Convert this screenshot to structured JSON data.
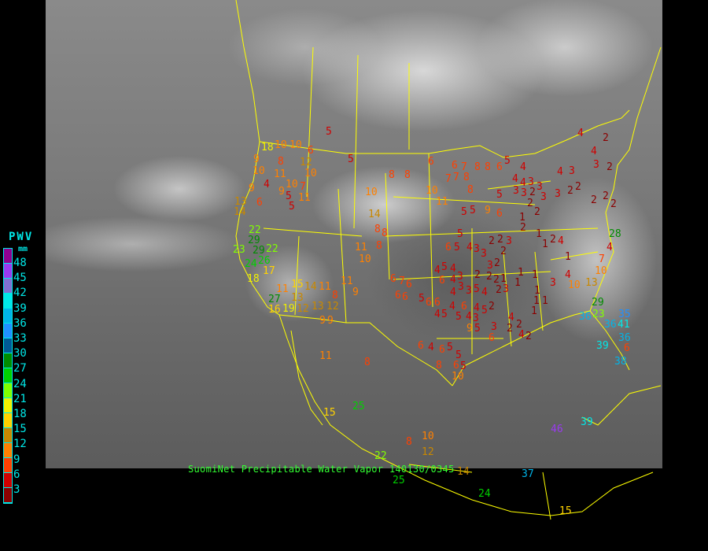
{
  "caption": "SuomiNet Precipitable Water Vapor 140130/0345",
  "legend": {
    "title": "PWV",
    "unit": "mm",
    "labels": [
      "48",
      "45",
      "42",
      "39",
      "36",
      "33",
      "30",
      "27",
      "24",
      "21",
      "18",
      "15",
      "12",
      "9",
      "6",
      "3"
    ],
    "colors": [
      "#900090",
      "#9a3af0",
      "#8070d0",
      "#00e8e8",
      "#00b4e8",
      "#2090ff",
      "#005a96",
      "#008c00",
      "#00d000",
      "#80ff00",
      "#f0f000",
      "#ffd200",
      "#c88800",
      "#ff8000",
      "#ff4000",
      "#d00000",
      "#8b0000"
    ]
  },
  "stations": [
    18,
    10,
    10,
    6,
    5,
    5,
    9,
    10,
    8,
    12,
    10,
    9,
    11,
    10,
    4,
    9,
    7,
    5,
    5,
    11,
    14,
    13,
    6,
    22,
    29,
    23,
    29,
    26,
    22,
    24,
    17,
    18,
    11,
    15,
    14,
    27,
    16,
    19,
    13,
    12,
    13,
    11,
    12,
    9,
    9,
    8,
    11,
    9,
    10,
    14,
    8,
    8,
    8,
    11,
    10,
    11,
    8,
    15,
    25,
    22,
    25,
    8,
    10,
    12,
    14,
    37,
    24,
    15,
    46,
    39,
    8,
    8,
    6,
    6,
    7,
    8,
    8,
    6,
    7,
    7,
    8,
    8,
    10,
    11,
    5,
    5,
    9,
    5,
    6,
    5,
    4,
    4,
    4,
    3,
    3,
    2,
    3,
    3,
    2,
    3,
    3,
    2,
    2,
    4,
    3,
    4,
    4,
    3,
    2,
    2,
    2,
    2,
    2,
    2,
    2,
    1,
    1,
    1,
    2,
    4,
    5,
    4,
    3,
    3,
    2,
    2,
    3,
    2,
    2,
    1,
    1,
    1,
    1,
    1,
    1,
    1,
    1,
    3,
    1,
    4,
    10,
    13,
    10,
    7,
    4,
    28,
    29,
    23,
    36,
    36,
    41,
    35,
    39,
    36,
    38,
    6,
    6,
    5,
    5,
    4,
    4,
    6,
    4,
    3,
    3,
    4,
    3,
    5,
    2,
    2,
    2,
    3,
    3,
    2,
    4,
    6,
    6,
    7,
    6,
    6,
    6,
    6,
    6,
    5,
    4,
    5,
    4,
    5,
    4,
    3,
    5,
    5,
    9,
    4,
    2,
    3,
    2,
    2,
    2,
    4,
    4,
    6,
    6,
    4,
    6,
    5,
    5,
    6,
    8,
    10,
    5
  ]
}
